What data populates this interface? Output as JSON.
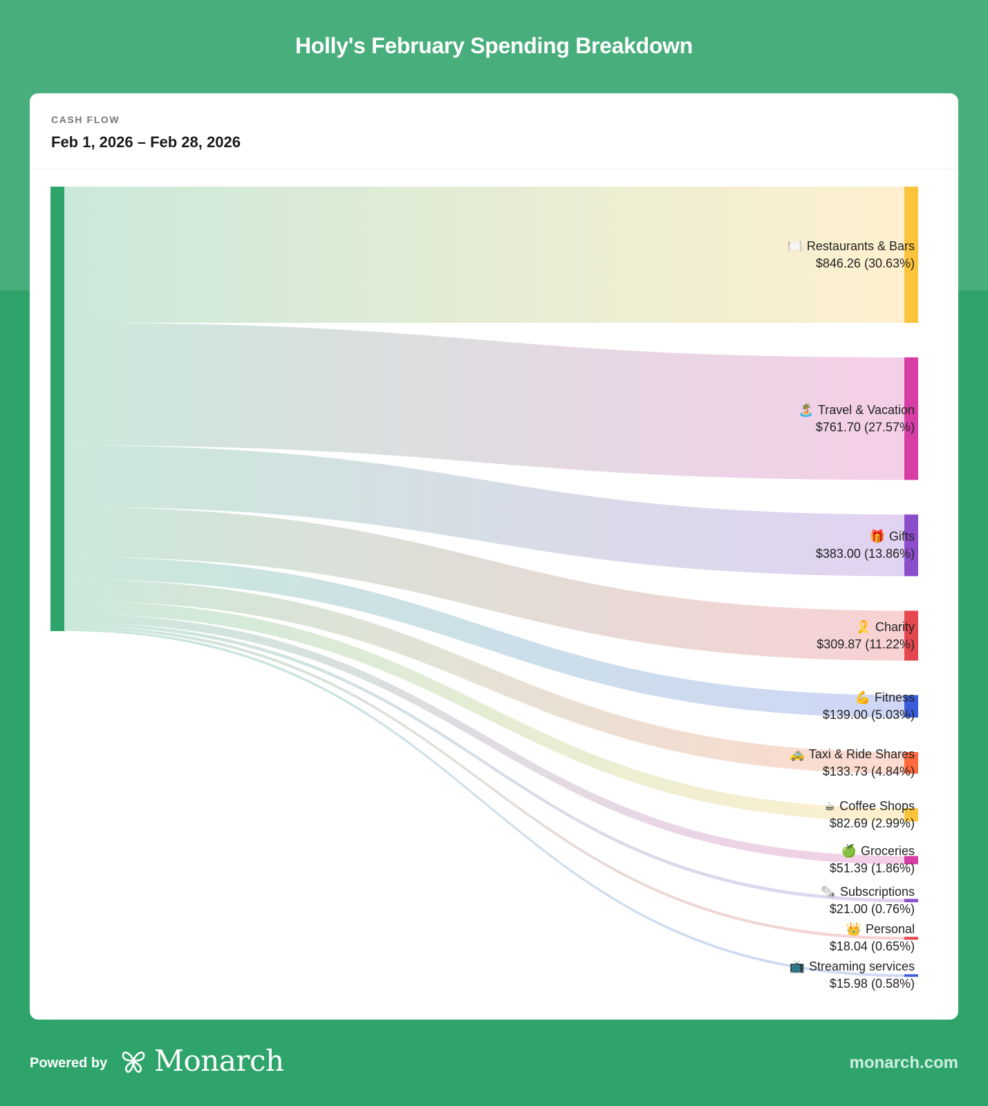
{
  "header": {
    "title": "Holly's February Spending Breakdown"
  },
  "card": {
    "kicker": "CASH FLOW",
    "date_range": "Feb 1, 2026 – Feb 28, 2026"
  },
  "source_node": {
    "color": "#2ea46b"
  },
  "chart_data": {
    "type": "sankey",
    "title": "Holly's February Spending Breakdown",
    "subtitle": "Cash Flow, Feb 1, 2026 – Feb 28, 2026",
    "total": 2762.66,
    "categories": [
      {
        "name": "Restaurants & Bars",
        "icon": "🍽️",
        "value": 846.26,
        "value_label": "$846.26",
        "percent": 30.63,
        "percent_label": "(30.63%)",
        "color": "#fcc43d"
      },
      {
        "name": "Travel & Vacation",
        "icon": "🏝️",
        "value": 761.7,
        "value_label": "$761.70",
        "percent": 27.57,
        "percent_label": "(27.57%)",
        "color": "#d73ea5"
      },
      {
        "name": "Gifts",
        "icon": "🎁",
        "value": 383.0,
        "value_label": "$383.00",
        "percent": 13.86,
        "percent_label": "(13.86%)",
        "color": "#8b4dca"
      },
      {
        "name": "Charity",
        "icon": "🎗️",
        "value": 309.87,
        "value_label": "$309.87",
        "percent": 11.22,
        "percent_label": "(11.22%)",
        "color": "#e5474f"
      },
      {
        "name": "Fitness",
        "icon": "💪",
        "value": 139.0,
        "value_label": "$139.00",
        "percent": 5.03,
        "percent_label": "(5.03%)",
        "color": "#3a5ddb"
      },
      {
        "name": "Taxi & Ride Shares",
        "icon": "🚕",
        "value": 133.73,
        "value_label": "$133.73",
        "percent": 4.84,
        "percent_label": "(4.84%)",
        "color": "#ff6a3d"
      },
      {
        "name": "Coffee Shops",
        "icon": "☕",
        "value": 82.69,
        "value_label": "$82.69",
        "percent": 2.99,
        "percent_label": "(2.99%)",
        "color": "#fcc43d"
      },
      {
        "name": "Groceries",
        "icon": "🍏",
        "value": 51.39,
        "value_label": "$51.39",
        "percent": 1.86,
        "percent_label": "(1.86%)",
        "color": "#d73ea5"
      },
      {
        "name": "Subscriptions",
        "icon": "🗞️",
        "value": 21.0,
        "value_label": "$21.00",
        "percent": 0.76,
        "percent_label": "(0.76%)",
        "color": "#8b4dca"
      },
      {
        "name": "Personal",
        "icon": "👑",
        "value": 18.04,
        "value_label": "$18.04",
        "percent": 0.65,
        "percent_label": "(0.65%)",
        "color": "#e5474f"
      },
      {
        "name": "Streaming services",
        "icon": "📺",
        "value": 15.98,
        "value_label": "$15.98",
        "percent": 0.58,
        "percent_label": "(0.58%)",
        "color": "#3a5ddb"
      }
    ]
  },
  "footer": {
    "powered_by": "Powered by",
    "brand": "Monarch",
    "url": "monarch.com"
  }
}
